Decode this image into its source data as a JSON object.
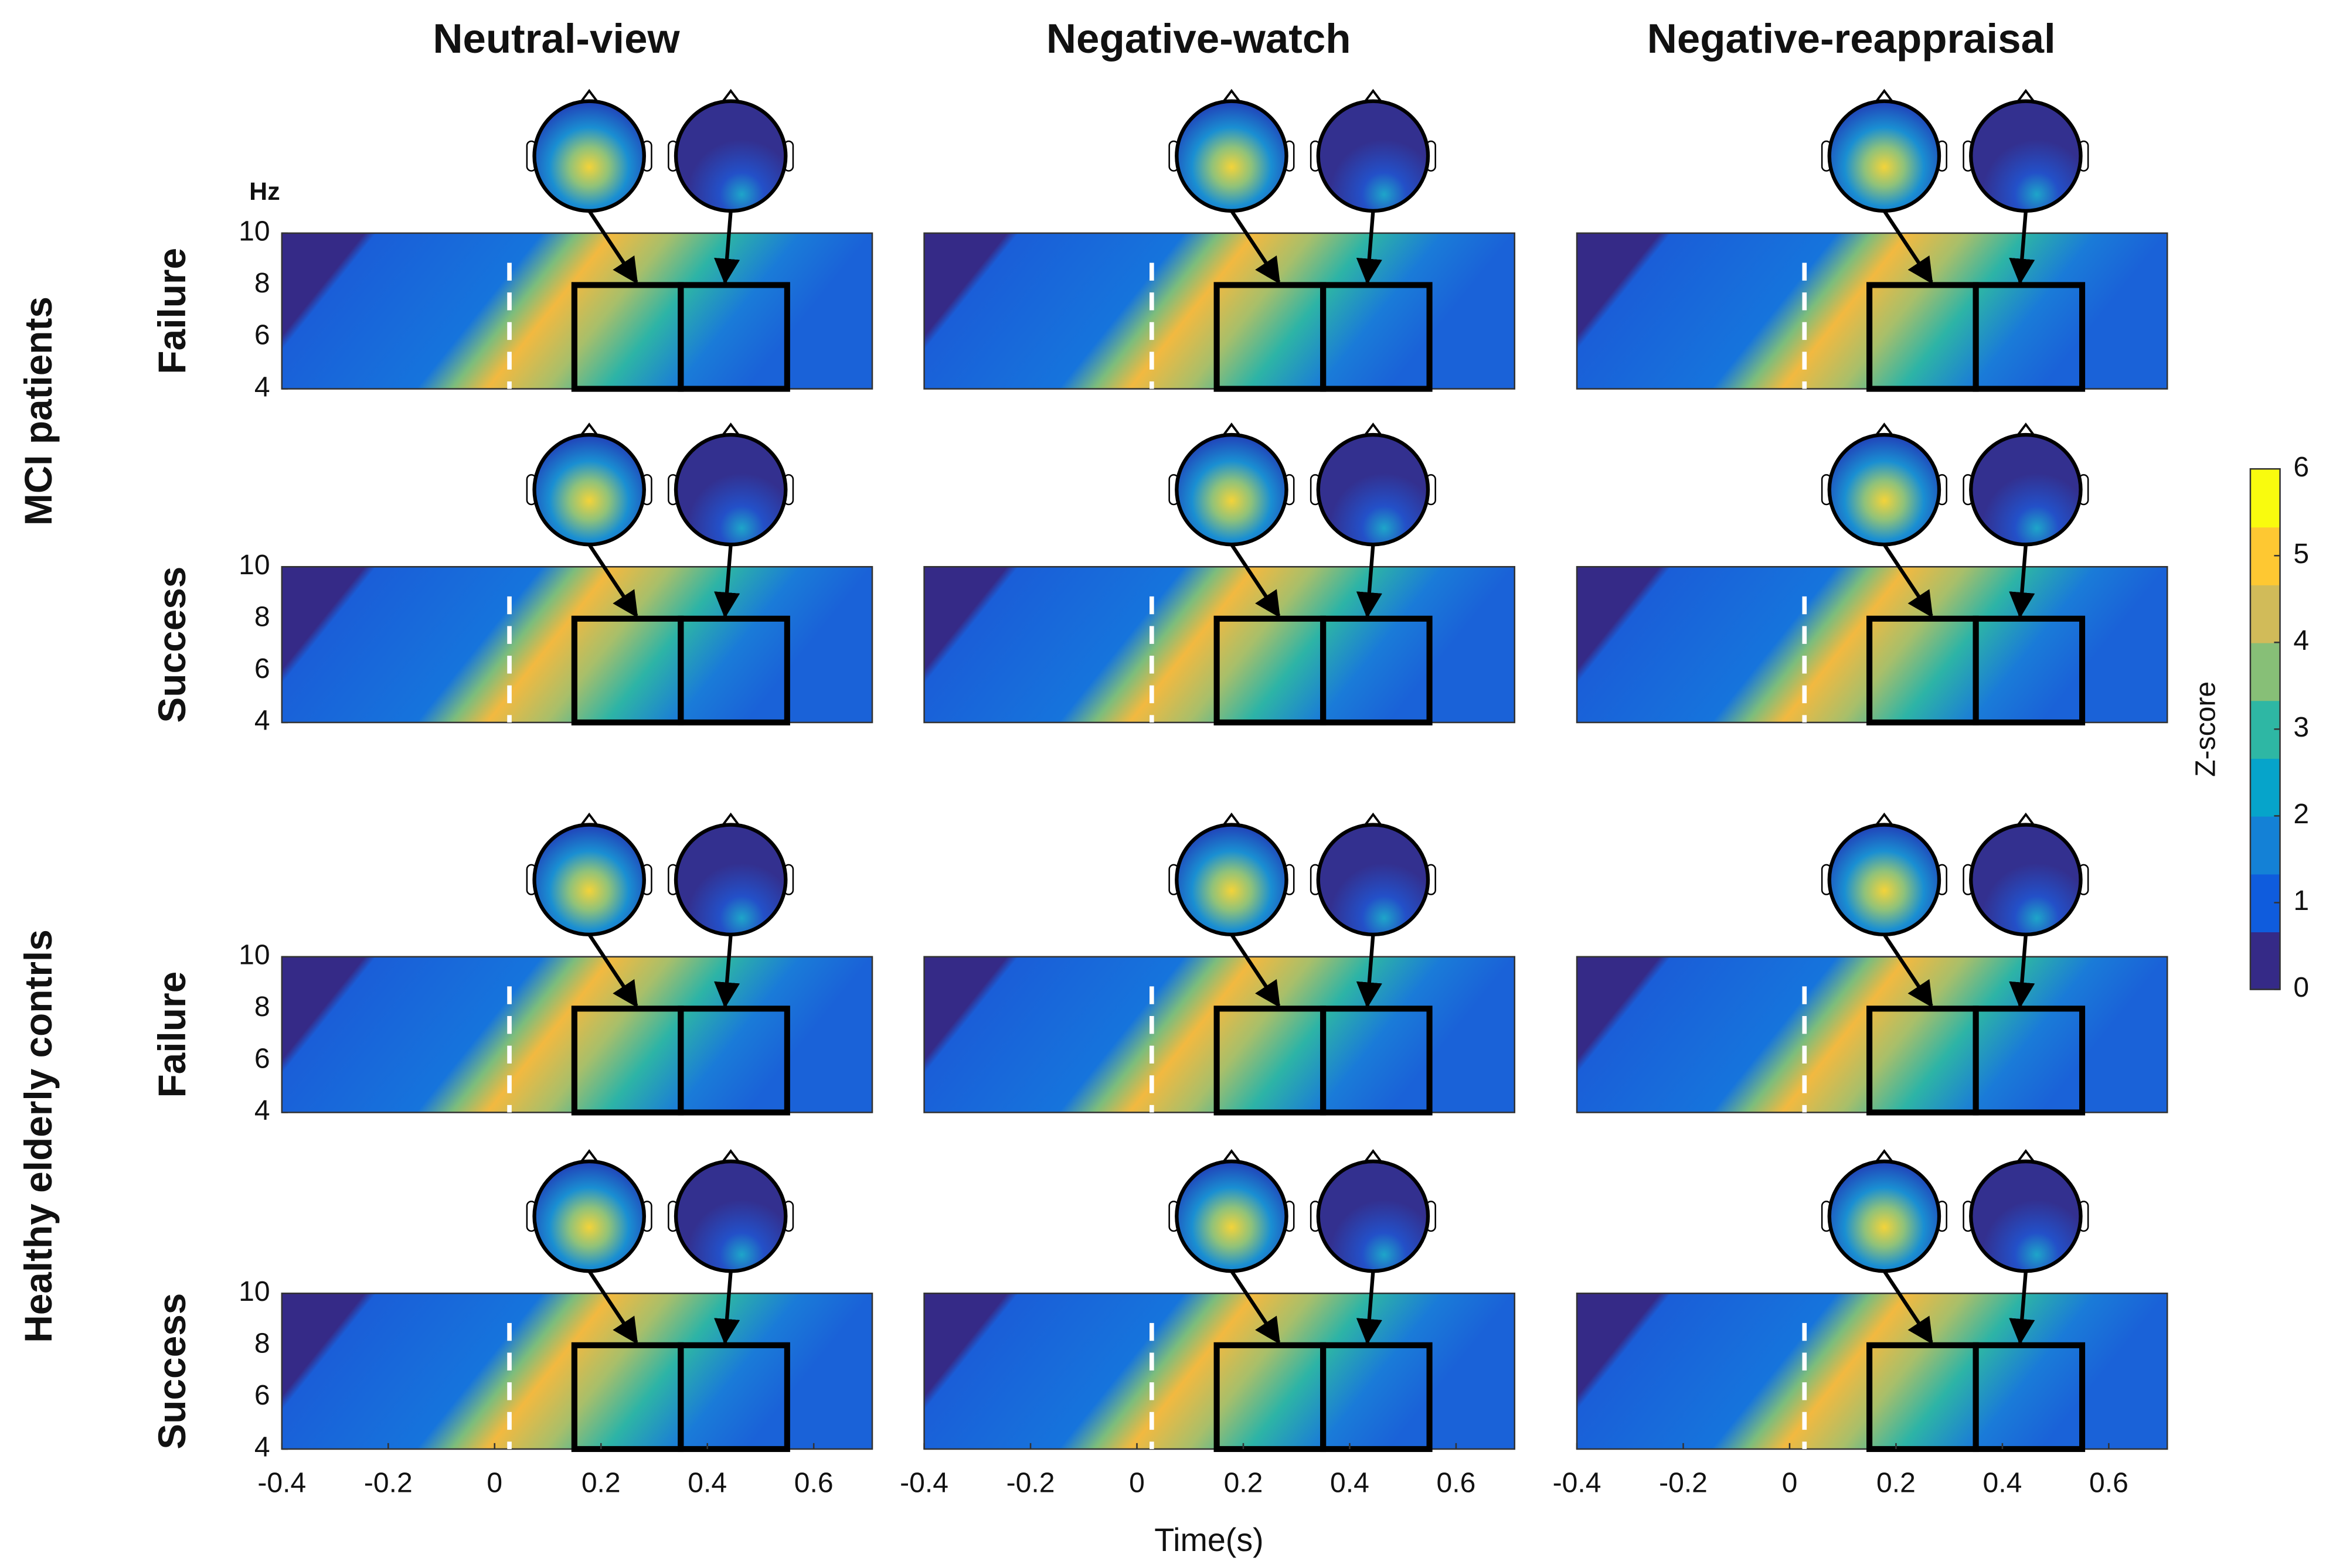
{
  "chart_data": {
    "type": "heatmap",
    "columns": [
      "Neutral-view",
      "Negative-watch",
      "Negative-reappraisal"
    ],
    "groups": [
      {
        "name": "MCI patients",
        "rows": [
          "Failure",
          "Success"
        ]
      },
      {
        "name": "Healthy elderly contrls",
        "rows": [
          "Failure",
          "Success"
        ]
      }
    ],
    "y_label": "Hz",
    "x_label": "Time(s)",
    "xlim": [
      -0.4,
      0.71
    ],
    "xticks": [
      -0.4,
      -0.2,
      0,
      0.2,
      0.4,
      0.6
    ],
    "ylim": [
      4,
      10
    ],
    "yticks": [
      4,
      6,
      8,
      10
    ],
    "windows": [
      [
        0.15,
        0.35
      ],
      [
        0.35,
        0.55
      ]
    ],
    "window_freq": [
      4,
      8
    ],
    "colorbar": {
      "label": "Z-score",
      "lim": [
        0,
        6
      ],
      "ticks": [
        0,
        1,
        2,
        3,
        4,
        5,
        6
      ],
      "colormap": [
        "#352a87",
        "#0f5cdd",
        "#1481d6",
        "#06a4ca",
        "#2eb7a4",
        "#87bf77",
        "#d1bb59",
        "#fec832",
        "#f9fb0e"
      ]
    }
  }
}
